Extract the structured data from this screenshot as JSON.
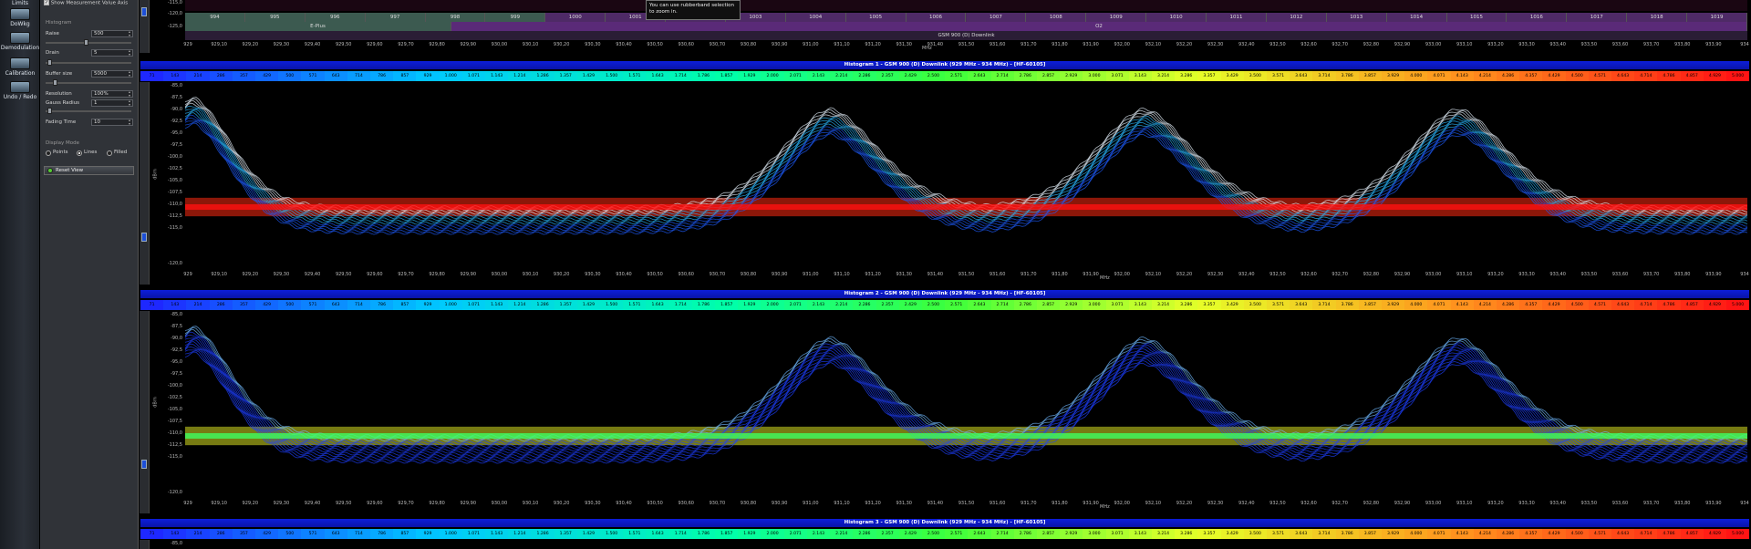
{
  "toolbar": {
    "items": [
      {
        "label": "Limits",
        "icon": "limits-icon"
      },
      {
        "label": "DoWkg",
        "icon": "doworking-icon"
      },
      {
        "label": "Demodulation",
        "icon": "demodulation-icon"
      },
      {
        "label": "Calibration",
        "icon": "calibration-icon"
      },
      {
        "label": "Undo / Redo",
        "icon": "undo-redo-icon"
      }
    ]
  },
  "panel": {
    "show_axis_label": "Show Measurement Value Axis",
    "histogram_group": "Histogram",
    "raise_label": "Raise",
    "raise_value": "500",
    "drain_label": "Drain",
    "drain_value": "5",
    "buffer_label": "Buffer size",
    "buffer_value": "5000",
    "resolution_label": "Resolution",
    "resolution_value": "100%",
    "gauss_label": "Gauss Radius",
    "gauss_value": "1",
    "fading_label": "Fading Time",
    "fading_value": "10",
    "display_mode_group": "Display Mode",
    "mode_points": "Points",
    "mode_lines": "Lines",
    "mode_filled": "Filled",
    "reset_label": "Reset View"
  },
  "tooltip": {
    "line1": "You can use rubberband selection",
    "line2": "to zoom in."
  },
  "top_overview": {
    "y_ticks": [
      "-115,0",
      "-120,0",
      "-125,0"
    ],
    "channels": [
      "994",
      "995",
      "996",
      "997",
      "998",
      "999",
      "1000",
      "1001",
      "1002",
      "1003",
      "1004",
      "1005",
      "1006",
      "1007",
      "1008",
      "1009",
      "1010",
      "1011",
      "1012",
      "1013",
      "1014",
      "1015",
      "1016",
      "1017",
      "1018",
      "1019"
    ],
    "band_labels": [
      "E-Plus",
      "O2"
    ],
    "band_title": "GSM 900 (D) Downlink",
    "x_unit": "MHz"
  },
  "x_ticks": [
    "929",
    "929,10",
    "929,20",
    "929,30",
    "929,40",
    "929,50",
    "929,60",
    "929,70",
    "929,80",
    "929,90",
    "930,00",
    "930,10",
    "930,20",
    "930,30",
    "930,40",
    "930,50",
    "930,60",
    "930,70",
    "930,80",
    "930,90",
    "931,00",
    "931,10",
    "931,20",
    "931,30",
    "931,40",
    "931,50",
    "931,60",
    "931,70",
    "931,80",
    "931,90",
    "932,00",
    "932,10",
    "932,20",
    "932,30",
    "932,40",
    "932,50",
    "932,60",
    "932,70",
    "932,80",
    "932,90",
    "933,00",
    "933,10",
    "933,20",
    "933,30",
    "933,40",
    "933,50",
    "933,60",
    "933,70",
    "933,80",
    "933,90",
    "934"
  ],
  "x_unit": "MHz",
  "y_unit": "dBm",
  "y_ticks": [
    "-85,0",
    "-87,5",
    "-90,0",
    "-92,5",
    "-95,0",
    "-97,5",
    "-100,0",
    "-102,5",
    "-105,0",
    "-107,5",
    "-110,0",
    "-112,5",
    "-115,0",
    "-120,0"
  ],
  "colorscale": [
    "71",
    "143",
    "214",
    "286",
    "357",
    "429",
    "500",
    "571",
    "643",
    "714",
    "786",
    "857",
    "929",
    "1.000",
    "1.071",
    "1.143",
    "1.214",
    "1.286",
    "1.357",
    "1.429",
    "1.500",
    "1.571",
    "1.643",
    "1.714",
    "1.786",
    "1.857",
    "1.929",
    "2.000",
    "2.071",
    "2.143",
    "2.214",
    "2.286",
    "2.357",
    "2.429",
    "2.500",
    "2.571",
    "2.643",
    "2.714",
    "2.786",
    "2.857",
    "2.929",
    "3.000",
    "3.071",
    "3.143",
    "3.214",
    "3.286",
    "3.357",
    "3.429",
    "3.500",
    "3.571",
    "3.643",
    "3.714",
    "3.786",
    "3.857",
    "3.929",
    "4.000",
    "4.071",
    "4.143",
    "4.214",
    "4.286",
    "4.357",
    "4.429",
    "4.500",
    "4.571",
    "4.643",
    "4.714",
    "4.786",
    "4.857",
    "4.929",
    "5.000"
  ],
  "histograms": [
    {
      "title": "Histogram 1 - GSM 900 (D) Downlink (929 MHz - 934 MHz) - [HF-60105]"
    },
    {
      "title": "Histogram 2 - GSM 900 (D) Downlink (929 MHz - 934 MHz) - [HF-60105]"
    },
    {
      "title": "Histogram 3 - GSM 900 (D) Downlink (929 MHz - 934 MHz) - [HF-60105]",
      "y_first": "-85,0"
    }
  ],
  "colors": {
    "title_bar": "#0a14c8",
    "heat_low": "#1e3cff",
    "heat_mid": "#22ff66",
    "heat_high": "#ff1a1a"
  }
}
